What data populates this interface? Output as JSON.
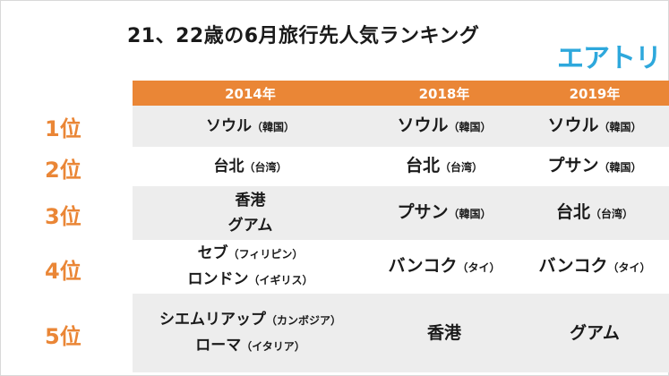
{
  "title": "21、22歳の6月旅行先人気ランキング",
  "logo": "エアトリ",
  "headers": [
    "2014年",
    "2018年",
    "2019年"
  ],
  "ranks": [
    "1位",
    "2位",
    "3位",
    "4位",
    "5位"
  ],
  "rows": [
    {
      "c2014": [
        {
          "name": "ソウル",
          "sub": "（韓国）"
        }
      ],
      "c2018": [
        {
          "name": "ソウル",
          "sub": "（韓国）"
        }
      ],
      "c2019": [
        {
          "name": "ソウル",
          "sub": "（韓国）"
        }
      ]
    },
    {
      "c2014": [
        {
          "name": "台北",
          "sub": "（台湾）"
        }
      ],
      "c2018": [
        {
          "name": "台北",
          "sub": "（台湾）"
        }
      ],
      "c2019": [
        {
          "name": "プサン",
          "sub": "（韓国）"
        }
      ]
    },
    {
      "c2014": [
        {
          "name": "香港",
          "sub": ""
        },
        {
          "name": "グアム",
          "sub": ""
        }
      ],
      "c2018": [
        {
          "name": "プサン",
          "sub": "（韓国）"
        }
      ],
      "c2019": [
        {
          "name": "台北",
          "sub": "（台湾）"
        }
      ]
    },
    {
      "c2014": [
        {
          "name": "セブ",
          "sub": "（フィリピン）"
        },
        {
          "name": "ロンドン",
          "sub": "（イギリス）"
        }
      ],
      "c2018": [
        {
          "name": "バンコク",
          "sub": "（タイ）"
        }
      ],
      "c2019": [
        {
          "name": "バンコク",
          "sub": "（タイ）"
        }
      ]
    },
    {
      "c2014": [
        {
          "name": "シエムリアップ",
          "sub": "（カンボジア）"
        },
        {
          "name": "ローマ",
          "sub": "（イタリア）"
        }
      ],
      "c2018": [
        {
          "name": "香港",
          "sub": ""
        }
      ],
      "c2019": [
        {
          "name": "グアム",
          "sub": ""
        }
      ]
    }
  ]
}
